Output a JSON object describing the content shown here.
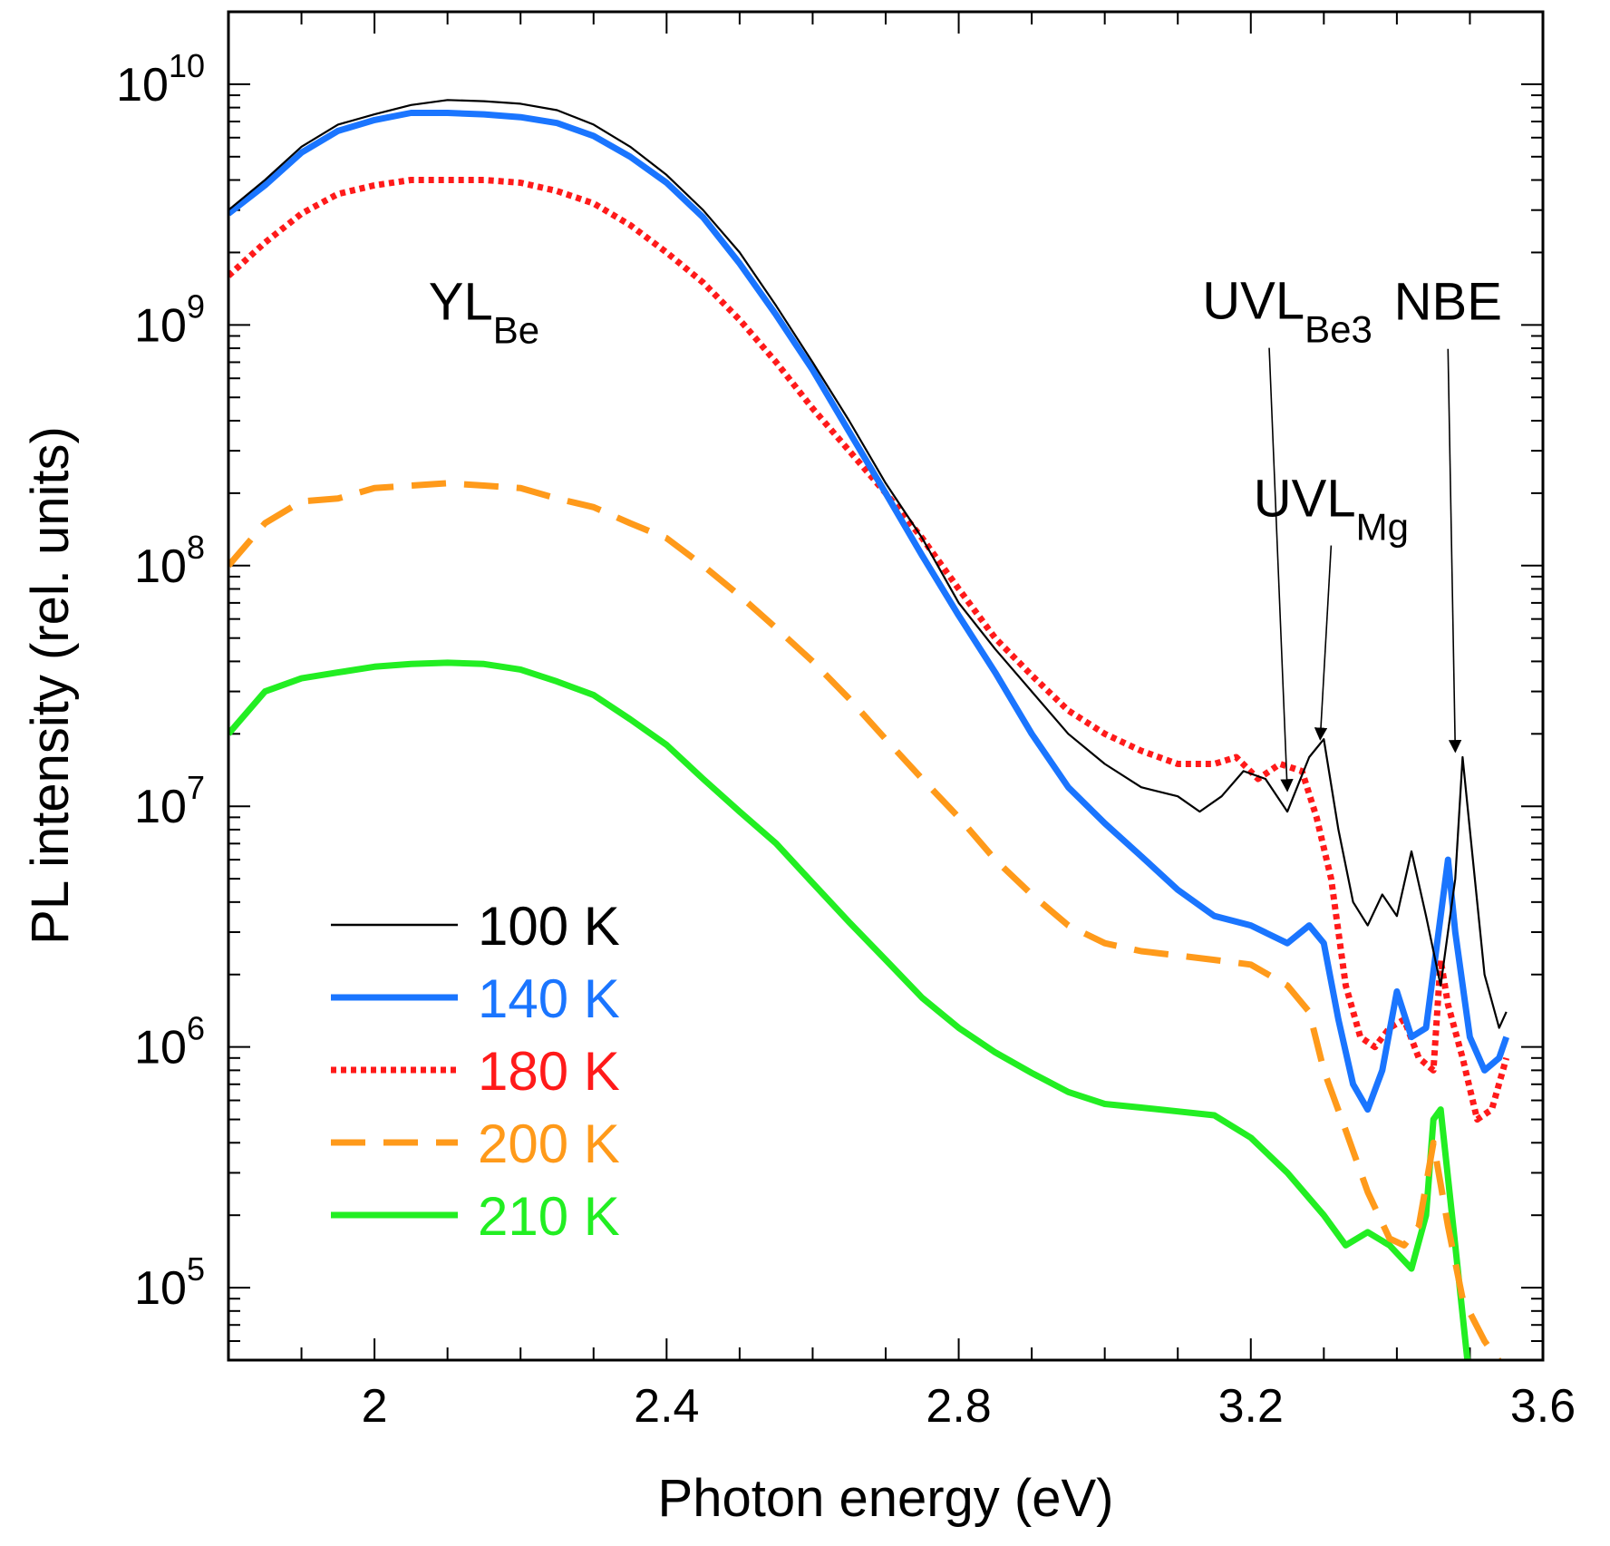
{
  "chart_data": {
    "type": "line",
    "title": "",
    "xlabel": "Photon energy (eV)",
    "ylabel": "PL intensity (rel. units)",
    "xscale": "linear",
    "yscale": "log",
    "xlim": [
      1.8,
      3.6
    ],
    "ylim": [
      50000,
      20000000000
    ],
    "xticks": [
      2.0,
      2.4,
      2.8,
      3.2,
      3.6
    ],
    "xtick_labels": [
      "2",
      "2.4",
      "2.8",
      "3.2",
      "3.6"
    ],
    "ytick_labels": [
      {
        "base": "10",
        "exp": "5",
        "value": 100000
      },
      {
        "base": "10",
        "exp": "6",
        "value": 1000000
      },
      {
        "base": "10",
        "exp": "7",
        "value": 10000000
      },
      {
        "base": "10",
        "exp": "8",
        "value": 100000000
      },
      {
        "base": "10",
        "exp": "9",
        "value": 1000000000
      },
      {
        "base": "10",
        "exp": "10",
        "value": 10000000000
      }
    ],
    "grid": false,
    "legend_position": "bottom-left",
    "series": [
      {
        "name": "100 K",
        "color": "#000000",
        "style": "solid",
        "width": "thin",
        "x": [
          1.8,
          1.85,
          1.9,
          1.95,
          2.0,
          2.05,
          2.1,
          2.15,
          2.2,
          2.25,
          2.3,
          2.35,
          2.4,
          2.45,
          2.5,
          2.55,
          2.6,
          2.65,
          2.7,
          2.75,
          2.8,
          2.85,
          2.9,
          2.95,
          3.0,
          3.05,
          3.1,
          3.13,
          3.16,
          3.19,
          3.22,
          3.25,
          3.28,
          3.3,
          3.32,
          3.34,
          3.36,
          3.38,
          3.4,
          3.42,
          3.44,
          3.46,
          3.48,
          3.49,
          3.5,
          3.52,
          3.54,
          3.55
        ],
        "y": [
          3000000000,
          4000000000,
          5500000000,
          6800000000,
          7500000000,
          8200000000,
          8600000000,
          8500000000,
          8300000000,
          7800000000,
          6800000000,
          5500000000,
          4200000000,
          3000000000,
          2000000000,
          1200000000,
          700000000,
          400000000,
          220000000,
          130000000,
          70000000,
          45000000,
          30000000,
          20000000,
          15000000,
          12000000,
          11000000,
          9500000,
          11000000,
          14000000,
          13000000,
          9500000,
          16000000,
          19000000,
          8000000,
          4000000,
          3200000,
          4300000,
          3500000,
          6500000,
          3500000,
          1800000,
          5000000,
          16000000,
          8000000,
          2000000,
          1200000,
          1400000
        ]
      },
      {
        "name": "140 K",
        "color": "#1a75ff",
        "style": "solid",
        "width": "thick",
        "x": [
          1.8,
          1.85,
          1.9,
          1.95,
          2.0,
          2.05,
          2.1,
          2.15,
          2.2,
          2.25,
          2.3,
          2.35,
          2.4,
          2.45,
          2.5,
          2.55,
          2.6,
          2.65,
          2.7,
          2.75,
          2.8,
          2.85,
          2.9,
          2.95,
          3.0,
          3.05,
          3.1,
          3.15,
          3.2,
          3.25,
          3.28,
          3.3,
          3.32,
          3.34,
          3.36,
          3.38,
          3.4,
          3.42,
          3.44,
          3.46,
          3.47,
          3.48,
          3.5,
          3.52,
          3.54,
          3.55
        ],
        "y": [
          2900000000,
          3800000000,
          5200000000,
          6400000000,
          7100000000,
          7600000000,
          7600000000,
          7500000000,
          7300000000,
          6900000000,
          6100000000,
          5000000000,
          3900000000,
          2800000000,
          1800000000,
          1100000000,
          650000000,
          360000000,
          200000000,
          110000000,
          62000000,
          36000000,
          20000000,
          12000000,
          8500000,
          6200000,
          4500000,
          3500000,
          3200000,
          2700000,
          3200000,
          2700000,
          1300000,
          700000,
          550000,
          800000,
          1700000,
          1100000,
          1200000,
          3500000,
          6000000,
          3000000,
          1100000,
          800000,
          900000,
          1100000
        ]
      },
      {
        "name": "180 K",
        "color": "#ff1a1a",
        "style": "dotted",
        "width": "thick",
        "x": [
          1.8,
          1.85,
          1.9,
          1.95,
          2.0,
          2.05,
          2.1,
          2.15,
          2.2,
          2.25,
          2.3,
          2.35,
          2.4,
          2.45,
          2.5,
          2.55,
          2.6,
          2.65,
          2.7,
          2.75,
          2.8,
          2.85,
          2.9,
          2.95,
          3.0,
          3.05,
          3.1,
          3.15,
          3.18,
          3.21,
          3.24,
          3.27,
          3.29,
          3.31,
          3.33,
          3.35,
          3.37,
          3.39,
          3.41,
          3.43,
          3.45,
          3.46,
          3.47,
          3.49,
          3.51,
          3.53,
          3.55
        ],
        "y": [
          1600000000,
          2200000000,
          2900000000,
          3500000000,
          3800000000,
          4000000000,
          4000000000,
          4000000000,
          3900000000,
          3600000000,
          3200000000,
          2600000000,
          2000000000,
          1500000000,
          1050000000,
          700000000,
          450000000,
          300000000,
          200000000,
          130000000,
          80000000,
          50000000,
          35000000,
          25000000,
          20000000,
          17000000,
          15000000,
          15000000,
          16000000,
          13000000,
          15000000,
          14000000,
          9000000,
          5000000,
          1800000,
          1100000,
          1000000,
          1200000,
          1300000,
          900000,
          800000,
          2300000,
          1500000,
          900000,
          500000,
          550000,
          900000
        ]
      },
      {
        "name": "200 K",
        "color": "#ff9a1a",
        "style": "dashed",
        "width": "thick",
        "x": [
          1.8,
          1.85,
          1.9,
          1.95,
          2.0,
          2.05,
          2.1,
          2.15,
          2.2,
          2.25,
          2.3,
          2.35,
          2.4,
          2.45,
          2.5,
          2.55,
          2.6,
          2.65,
          2.7,
          2.75,
          2.8,
          2.85,
          2.9,
          2.95,
          3.0,
          3.05,
          3.1,
          3.15,
          3.2,
          3.25,
          3.28,
          3.3,
          3.33,
          3.36,
          3.39,
          3.41,
          3.43,
          3.45,
          3.47,
          3.49,
          3.52,
          3.55
        ],
        "y": [
          100000000,
          150000000,
          185000000,
          190000000,
          210000000,
          215000000,
          220000000,
          215000000,
          210000000,
          190000000,
          175000000,
          150000000,
          130000000,
          100000000,
          75000000,
          55000000,
          40000000,
          28000000,
          19000000,
          13000000,
          9000000,
          6000000,
          4300000,
          3200000,
          2700000,
          2500000,
          2400000,
          2300000,
          2200000,
          1800000,
          1400000,
          800000,
          450000,
          250000,
          160000,
          150000,
          180000,
          400000,
          180000,
          90000,
          60000,
          45000
        ]
      },
      {
        "name": "210 K",
        "color": "#22ee22",
        "style": "solid",
        "width": "thick",
        "x": [
          1.8,
          1.85,
          1.9,
          1.95,
          2.0,
          2.05,
          2.1,
          2.15,
          2.2,
          2.25,
          2.3,
          2.35,
          2.4,
          2.45,
          2.5,
          2.55,
          2.6,
          2.65,
          2.7,
          2.75,
          2.8,
          2.85,
          2.9,
          2.95,
          3.0,
          3.05,
          3.1,
          3.15,
          3.2,
          3.25,
          3.3,
          3.33,
          3.36,
          3.39,
          3.42,
          3.44,
          3.45,
          3.46,
          3.48,
          3.5
        ],
        "y": [
          20000000,
          30000000,
          34000000,
          36000000,
          38000000,
          39000000,
          39500000,
          39000000,
          37000000,
          33000000,
          29000000,
          23000000,
          18000000,
          13000000,
          9500000,
          7000000,
          4800000,
          3300000,
          2300000,
          1600000,
          1200000,
          950000,
          780000,
          650000,
          580000,
          560000,
          540000,
          520000,
          420000,
          300000,
          200000,
          150000,
          170000,
          150000,
          120000,
          200000,
          500000,
          550000,
          150000,
          40000
        ]
      }
    ],
    "annotations": [
      {
        "text": "YL",
        "subscript": "Be",
        "x": 2.15,
        "y": 1050000000
      },
      {
        "text": "UVL",
        "subscript": "Be3",
        "x": 3.25,
        "y": 1060000000,
        "arrow_to": [
          3.25,
          11000000
        ]
      },
      {
        "text": "UVL",
        "subscript": "Mg",
        "x": 3.31,
        "y": 160000000,
        "arrow_to": [
          3.295,
          18000000
        ]
      },
      {
        "text": "NBE",
        "subscript": "",
        "x": 3.47,
        "y": 1050000000,
        "arrow_to": [
          3.48,
          16000000
        ]
      }
    ]
  }
}
